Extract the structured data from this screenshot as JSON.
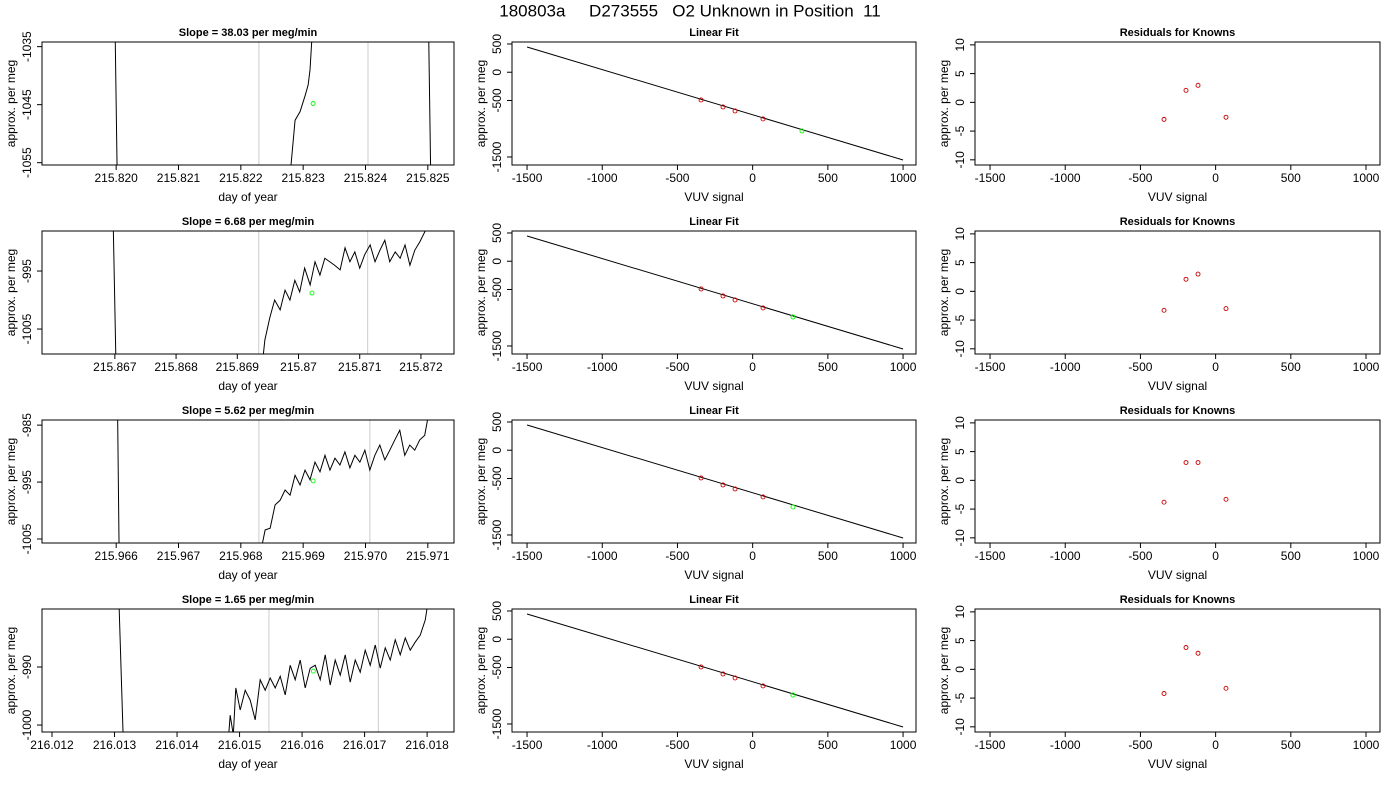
{
  "title": "180803a     D273555   O2 Unknown in Position  11",
  "chart_data": [
    {
      "type": "line",
      "title": "Slope =  38.03  per meg/min",
      "xlabel": "day of year",
      "ylabel": "approx. per meg",
      "xlim": [
        215.81881,
        215.82542
      ],
      "ylim": [
        -1055.4,
        -1034.2
      ],
      "xticks": [
        {
          "value": 215.82,
          "label": "215.820"
        },
        215.821,
        215.822,
        215.823,
        215.824,
        215.825
      ],
      "yticks": [
        -1035,
        -1045,
        -1055
      ],
      "series": [
        {
          "color": "#000000",
          "x": [
            215.81998,
            215.82002,
            215.8228,
            215.82287,
            215.82295,
            215.82303,
            215.82308,
            215.82311,
            215.82316,
            215.82501,
            215.82505
          ],
          "values": [
            -1030,
            -1060,
            -1056,
            -1047.7,
            -1046.2,
            -1043.5,
            -1041.6,
            -1039,
            -1030,
            -1030,
            -1060
          ]
        }
      ],
      "markers": {
        "color": "#00ff00",
        "x": [
          215.82316
        ],
        "values": [
          -1044.8
        ]
      },
      "vlines": {
        "color": "#cccccc",
        "x": [
          215.82229,
          215.82404
        ]
      }
    },
    {
      "type": "scatter",
      "title": "Linear Fit",
      "xlabel": "VUV signal",
      "ylabel": "approx. per meg",
      "xlim": [
        -1600,
        1086
      ],
      "ylim": [
        -1642,
        535
      ],
      "xticks": [
        -1500,
        -1000,
        -500,
        0,
        500,
        1000
      ],
      "yticks": [
        500,
        0,
        -500,
        -1500
      ],
      "fit_line": {
        "color": "#000000",
        "x": [
          -1500,
          1000
        ],
        "values": [
          447,
          -1553
        ]
      },
      "series": [
        {
          "color": "#cc0000",
          "x": [
            -343,
            -197,
            -117,
            69
          ],
          "values": [
            -491,
            -615,
            -686,
            -827
          ]
        },
        {
          "color": "#00ff00",
          "x": [
            328
          ],
          "values": [
            -1040
          ]
        }
      ]
    },
    {
      "type": "scatter",
      "title": "Residuals for Knowns",
      "xlabel": "VUV signal",
      "ylabel": "approx. per meg",
      "xlim": [
        -1600,
        1093
      ],
      "ylim": [
        -10.9,
        10.5
      ],
      "xticks": [
        -1500,
        -1000,
        -500,
        0,
        500,
        1000
      ],
      "yticks": [
        10,
        5,
        0,
        -5,
        -10
      ],
      "series": [
        {
          "color": "#cc0000",
          "x": [
            -343,
            -197,
            -117,
            69
          ],
          "values": [
            -2.96,
            2.09,
            2.96,
            -2.6
          ]
        }
      ]
    },
    {
      "type": "line",
      "title": "Slope =  6.68  per meg/min",
      "xlabel": "day of year",
      "ylabel": "approx. per meg",
      "xlim": [
        215.86581,
        215.87254
      ],
      "ylim": [
        -1009.3,
        -988.1
      ],
      "xticks": [
        215.867,
        215.868,
        215.869,
        215.87,
        215.871,
        215.872
      ],
      "yticks": [
        -995,
        -1005
      ],
      "series": [
        {
          "color": "#000000",
          "x": [
            215.86697,
            215.86702,
            215.8694,
            215.86945,
            215.86953,
            215.86961,
            215.8697,
            215.86978,
            215.86986,
            215.86994,
            215.87002,
            215.8701,
            215.87019,
            215.87027,
            215.87035,
            215.87043,
            215.87051,
            215.87059,
            215.87068,
            215.87076,
            215.87084,
            215.87092,
            215.871,
            215.87108,
            215.87117,
            215.87125,
            215.87133,
            215.87141,
            215.87149,
            215.87158,
            215.87166,
            215.87174,
            215.87182,
            215.8719,
            215.87198,
            215.87207,
            215.87211
          ],
          "values": [
            -985,
            -1012,
            -1012,
            -1006.9,
            -1003.1,
            -1000,
            -1001.7,
            -998.3,
            -1000,
            -996.6,
            -998.6,
            -994.5,
            -997.4,
            -993.4,
            -995.7,
            -992.8,
            -993.4,
            -994,
            -994.8,
            -991,
            -993.4,
            -991.7,
            -994.5,
            -992.2,
            -990.5,
            -993.4,
            -991.4,
            -989.7,
            -993.4,
            -991.7,
            -992.8,
            -990.5,
            -994,
            -991.4,
            -990,
            -988.1,
            -986.2
          ]
        }
      ],
      "markers": {
        "color": "#00ff00",
        "x": [
          215.87022
        ],
        "values": [
          -998.8
        ]
      },
      "vlines": {
        "color": "#cccccc",
        "x": [
          215.86935,
          215.87113
        ]
      }
    },
    {
      "type": "scatter",
      "title": "Linear Fit",
      "xlabel": "VUV signal",
      "ylabel": "approx. per meg",
      "xlim": [
        -1600,
        1086
      ],
      "ylim": [
        -1642,
        535
      ],
      "xticks": [
        -1500,
        -1000,
        -500,
        0,
        500,
        1000
      ],
      "yticks": [
        500,
        0,
        -500,
        -1500
      ],
      "fit_line": {
        "color": "#000000",
        "x": [
          -1500,
          1000
        ],
        "values": [
          447,
          -1553
        ]
      },
      "series": [
        {
          "color": "#cc0000",
          "x": [
            -343,
            -197,
            -117,
            69
          ],
          "values": [
            -491,
            -615,
            -686,
            -827
          ]
        },
        {
          "color": "#00ff00",
          "x": [
            268
          ],
          "values": [
            -987
          ]
        }
      ]
    },
    {
      "type": "scatter",
      "title": "Residuals for Knowns",
      "xlabel": "VUV signal",
      "ylabel": "approx. per meg",
      "xlim": [
        -1600,
        1093
      ],
      "ylim": [
        -10.9,
        10.5
      ],
      "xticks": [
        -1500,
        -1000,
        -500,
        0,
        500,
        1000
      ],
      "yticks": [
        10,
        5,
        0,
        -5,
        -10
      ],
      "series": [
        {
          "color": "#cc0000",
          "x": [
            -343,
            -197,
            -117,
            69
          ],
          "values": [
            -3.3,
            2.1,
            3.0,
            -3.0
          ]
        }
      ]
    },
    {
      "type": "line",
      "title": "Slope =  5.62  per meg/min",
      "xlabel": "day of year",
      "ylabel": "approx. per meg",
      "xlim": [
        215.96481,
        215.97142
      ],
      "ylim": [
        -1005.7,
        -984.1
      ],
      "xticks": [
        215.966,
        215.967,
        215.968,
        215.969,
        {
          "value": 215.97,
          "label": "215.970"
        },
        215.971
      ],
      "yticks": [
        -985,
        -995,
        -1005
      ],
      "series": [
        {
          "color": "#000000",
          "x": [
            215.96602,
            215.96605,
            215.96834,
            215.96839,
            215.96847,
            215.96855,
            215.96863,
            215.96871,
            215.96879,
            215.96887,
            215.96895,
            215.96903,
            215.96911,
            215.96919,
            215.96927,
            215.96935,
            215.96943,
            215.96951,
            215.96959,
            215.96967,
            215.96975,
            215.96983,
            215.96991,
            215.96999,
            215.97007,
            215.97015,
            215.97023,
            215.97031,
            215.97039,
            215.97047,
            215.97055,
            215.97063,
            215.97071,
            215.97079,
            215.97087,
            215.97095,
            215.971
          ],
          "values": [
            -980,
            -1010,
            -1006.1,
            -1003.4,
            -1003.1,
            -999,
            -998.2,
            -996.4,
            -997.3,
            -993.8,
            -995.5,
            -992.9,
            -994.6,
            -991.5,
            -993.2,
            -990.3,
            -992.9,
            -990.8,
            -992,
            -989.7,
            -992.5,
            -990.3,
            -991.5,
            -989.4,
            -992.9,
            -990.3,
            -988.5,
            -991.1,
            -989.4,
            -987.6,
            -985.9,
            -990.3,
            -988.5,
            -989.4,
            -987.6,
            -986.8,
            -983.8
          ]
        }
      ],
      "markers": {
        "color": "#00ff00",
        "x": [
          215.96916
        ],
        "values": [
          -994.8
        ]
      },
      "vlines": {
        "color": "#cccccc",
        "x": [
          215.96829,
          215.97007
        ]
      }
    },
    {
      "type": "scatter",
      "title": "Linear Fit",
      "xlabel": "VUV signal",
      "ylabel": "approx. per meg",
      "xlim": [
        -1600,
        1086
      ],
      "ylim": [
        -1642,
        535
      ],
      "xticks": [
        -1500,
        -1000,
        -500,
        0,
        500,
        1000
      ],
      "yticks": [
        500,
        0,
        -500,
        -1500
      ],
      "fit_line": {
        "color": "#000000",
        "x": [
          -1500,
          1000
        ],
        "values": [
          447,
          -1553
        ]
      },
      "series": [
        {
          "color": "#cc0000",
          "x": [
            -343,
            -197,
            -117,
            69
          ],
          "values": [
            -491,
            -615,
            -686,
            -827
          ]
        },
        {
          "color": "#00ff00",
          "x": [
            268
          ],
          "values": [
            -1004
          ]
        }
      ]
    },
    {
      "type": "scatter",
      "title": "Residuals for Knowns",
      "xlabel": "VUV signal",
      "ylabel": "approx. per meg",
      "xlim": [
        -1600,
        1093
      ],
      "ylim": [
        -10.9,
        10.5
      ],
      "xticks": [
        -1500,
        -1000,
        -500,
        0,
        500,
        1000
      ],
      "yticks": [
        10,
        5,
        0,
        -5,
        -10
      ],
      "series": [
        {
          "color": "#cc0000",
          "x": [
            -343,
            -197,
            -117,
            69
          ],
          "values": [
            -3.8,
            3.1,
            3.1,
            -3.3
          ]
        }
      ]
    },
    {
      "type": "line",
      "title": "Slope =  1.65  per meg/min",
      "xlabel": "day of year",
      "ylabel": "approx. per meg",
      "xlim": [
        216.01184,
        216.01843
      ],
      "ylim": [
        -1001.2,
        -980
      ],
      "xticks": [
        216.012,
        216.013,
        216.014,
        216.015,
        216.016,
        216.017,
        216.018
      ],
      "yticks": [
        -990,
        -1000
      ],
      "series": [
        {
          "color": "#000000",
          "x": [
            216.01307,
            216.01314,
            216.01482,
            216.01485,
            216.0149,
            216.01494,
            216.01501,
            216.01509,
            216.01517,
            216.01525,
            216.01533,
            216.01541,
            216.01549,
            216.01557,
            216.01565,
            216.01573,
            216.01581,
            216.01589,
            216.01597,
            216.01605,
            216.01613,
            216.01621,
            216.01629,
            216.01637,
            216.01645,
            216.01653,
            216.01661,
            216.01669,
            216.01677,
            216.01685,
            216.01693,
            216.01701,
            216.01709,
            216.01717,
            216.01725,
            216.01733,
            216.01741,
            216.01749,
            216.01757,
            216.01765,
            216.01773,
            216.01781,
            216.01789,
            216.01797,
            216.01802
          ],
          "values": [
            -978.4,
            -1002.6,
            -1002.6,
            -998.3,
            -1001.7,
            -993.6,
            -997.4,
            -994,
            -995.7,
            -999.1,
            -992.2,
            -994,
            -991.9,
            -993.6,
            -991.6,
            -994.8,
            -989.7,
            -992.2,
            -988.8,
            -993.6,
            -990.2,
            -989.7,
            -992.2,
            -987.9,
            -993.1,
            -988.8,
            -991.4,
            -987.9,
            -992.6,
            -988.8,
            -990.9,
            -987.1,
            -989.7,
            -986.2,
            -990.2,
            -986.7,
            -988.8,
            -985.3,
            -987.9,
            -985,
            -987.1,
            -985.7,
            -984.5,
            -981.9,
            -978.4
          ]
        }
      ],
      "markers": {
        "color": "#00ff00",
        "x": [
          216.01618
        ],
        "values": [
          -990.7
        ]
      },
      "vlines": {
        "color": "#cccccc",
        "x": [
          216.01547,
          216.01722
        ]
      }
    },
    {
      "type": "scatter",
      "title": "Linear Fit",
      "xlabel": "VUV signal",
      "ylabel": "approx. per meg",
      "xlim": [
        -1600,
        1086
      ],
      "ylim": [
        -1642,
        535
      ],
      "xticks": [
        -1500,
        -1000,
        -500,
        0,
        500,
        1000
      ],
      "yticks": [
        500,
        0,
        -500,
        -1500
      ],
      "fit_line": {
        "color": "#000000",
        "x": [
          -1500,
          1000
        ],
        "values": [
          447,
          -1553
        ]
      },
      "series": [
        {
          "color": "#cc0000",
          "x": [
            -343,
            -197,
            -117,
            69
          ],
          "values": [
            -491,
            -615,
            -686,
            -827
          ]
        },
        {
          "color": "#00ff00",
          "x": [
            268
          ],
          "values": [
            -987
          ]
        }
      ]
    },
    {
      "type": "scatter",
      "title": "Residuals for Knowns",
      "xlabel": "VUV signal",
      "ylabel": "approx. per meg",
      "xlim": [
        -1600,
        1093
      ],
      "ylim": [
        -10.9,
        10.5
      ],
      "xticks": [
        -1500,
        -1000,
        -500,
        0,
        500,
        1000
      ],
      "yticks": [
        10,
        5,
        0,
        -5,
        -10
      ],
      "series": [
        {
          "color": "#cc0000",
          "x": [
            -343,
            -197,
            -117,
            69
          ],
          "values": [
            -4.2,
            3.8,
            2.8,
            -3.3
          ]
        }
      ]
    }
  ]
}
